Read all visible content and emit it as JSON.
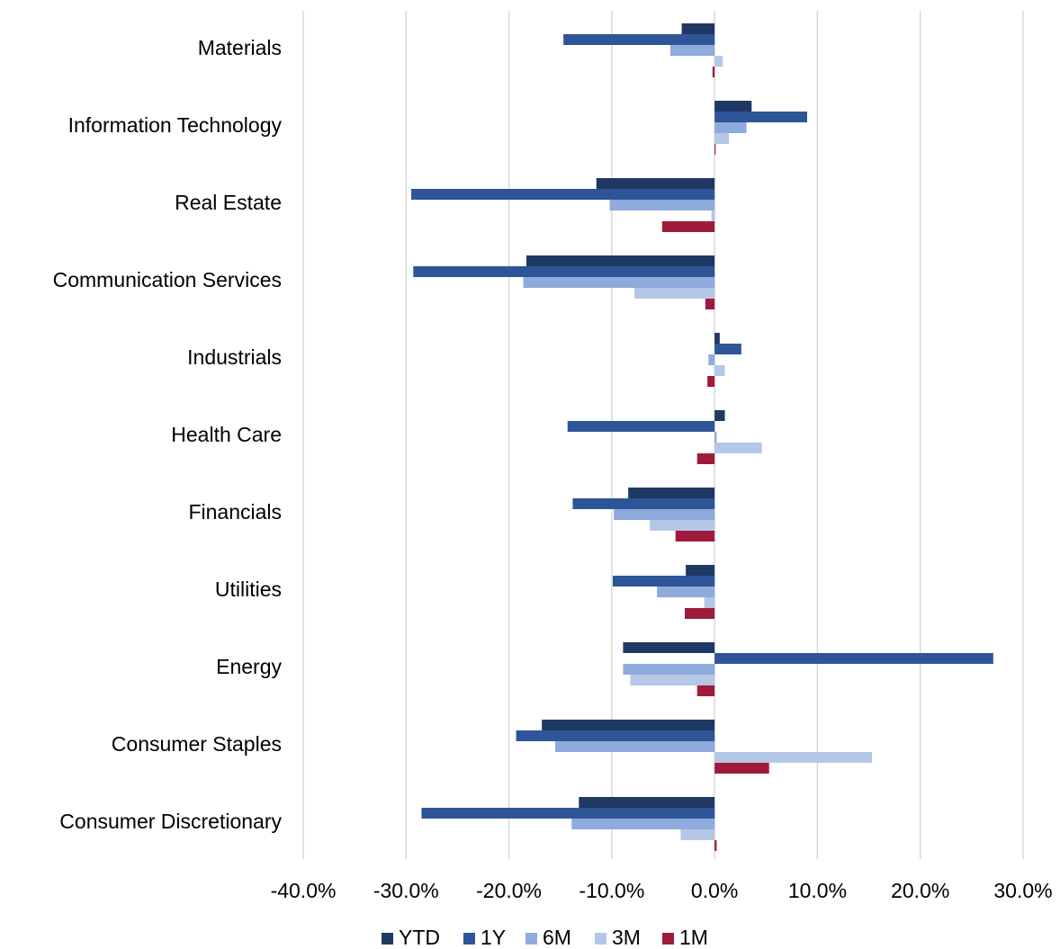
{
  "chart_data": {
    "type": "hbar",
    "categories": [
      "Materials",
      "Information Technology",
      "Real Estate",
      "Communication Services",
      "Industrials",
      "Health Care",
      "Financials",
      "Utilities",
      "Energy",
      "Consumer Staples",
      "Consumer Discretionary"
    ],
    "series": [
      {
        "name": "YTD",
        "color": "#1f3864",
        "values": [
          -3.2,
          3.6,
          -11.5,
          -18.3,
          0.5,
          1.0,
          -8.4,
          -2.8,
          -8.9,
          -16.8,
          -13.2
        ]
      },
      {
        "name": "1Y",
        "color": "#2e5597",
        "values": [
          -14.7,
          9.0,
          -29.5,
          -29.3,
          2.6,
          -14.3,
          -13.8,
          -9.9,
          27.1,
          -19.3,
          -28.5
        ]
      },
      {
        "name": "6M",
        "color": "#8faadc",
        "values": [
          -4.3,
          3.1,
          -10.2,
          -18.6,
          -0.6,
          0.2,
          -9.8,
          -5.6,
          -8.9,
          -15.5,
          -13.9
        ]
      },
      {
        "name": "3M",
        "color": "#b4c7e7",
        "values": [
          0.8,
          1.4,
          -0.3,
          -7.8,
          1.0,
          4.6,
          -6.3,
          -1.0,
          -8.2,
          15.3,
          -3.3
        ]
      },
      {
        "name": "1M",
        "color": "#9e1b3c",
        "values": [
          -0.2,
          0.1,
          -5.1,
          -0.9,
          -0.7,
          -1.7,
          -3.8,
          -2.9,
          -1.7,
          5.3,
          0.2
        ]
      }
    ],
    "xlim": [
      -40,
      30
    ],
    "xticks": [
      {
        "value": -40,
        "label": "-40.0%"
      },
      {
        "value": -30,
        "label": "-30.0%"
      },
      {
        "value": -20,
        "label": "-20.0%"
      },
      {
        "value": -10,
        "label": "-10.0%"
      },
      {
        "value": 0,
        "label": "0.0%"
      },
      {
        "value": 10,
        "label": "10.0%"
      },
      {
        "value": 20,
        "label": "20.0%"
      },
      {
        "value": 30,
        "label": "30.0%"
      }
    ],
    "grid": true,
    "legend": "bottom"
  }
}
